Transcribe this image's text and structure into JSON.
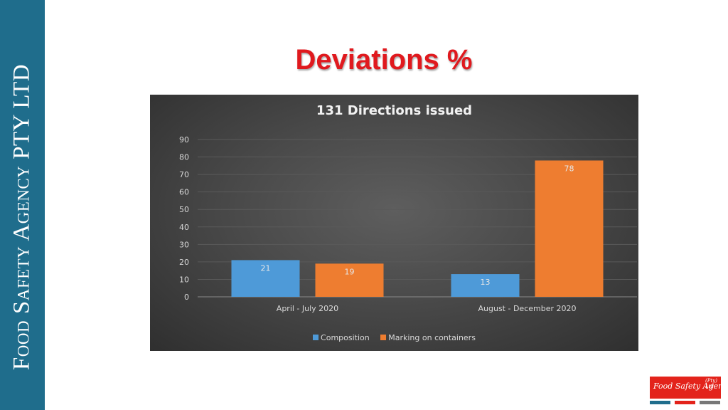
{
  "sidebar": {
    "text": "Food Safety Agency PTY LTD",
    "color": "#1f6d8c"
  },
  "slide": {
    "title": "Deviations %",
    "title_color": "#e0191e"
  },
  "chart_data": {
    "type": "bar",
    "title": "131 Directions issued",
    "categories": [
      "April - July 2020",
      "August - December 2020"
    ],
    "series": [
      {
        "name": "Composition",
        "values": [
          21,
          13
        ],
        "color": "#4e9ad8"
      },
      {
        "name": "Marking on containers",
        "values": [
          19,
          78
        ],
        "color": "#ee7d30"
      }
    ],
    "ylim": [
      0,
      90
    ],
    "yticks": [
      0,
      10,
      20,
      30,
      40,
      50,
      60,
      70,
      80,
      90
    ],
    "grid": true,
    "data_labels": true,
    "legend": "bottom"
  },
  "logo": {
    "name": "Food Safety Agency",
    "suffix": "(Pty) Ltd",
    "stripe_colors": [
      "#1f6d8c",
      "#e3231b",
      "#777777"
    ]
  }
}
